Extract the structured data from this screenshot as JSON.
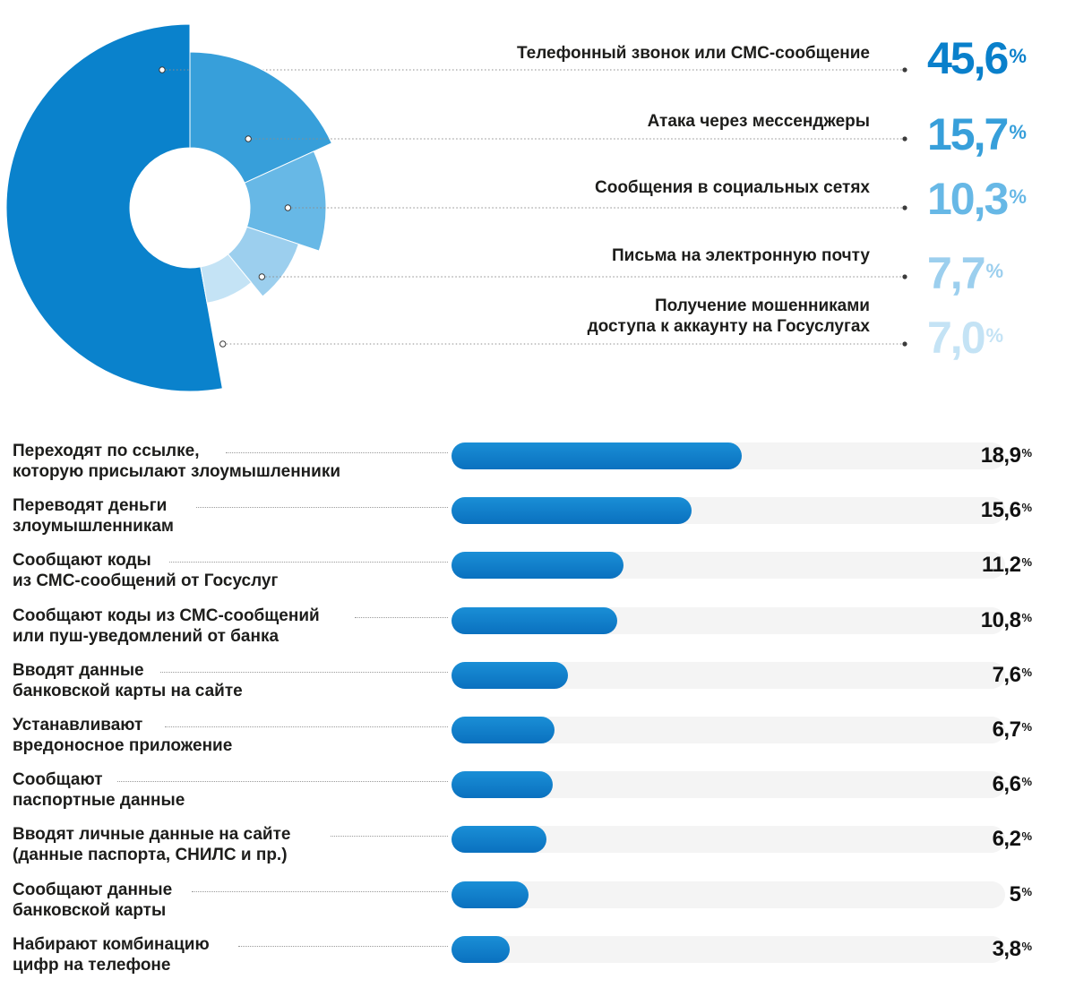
{
  "colors": {
    "slice1": "#0a82cc",
    "slice2": "#379fda",
    "slice3": "#67b8e6",
    "slice4": "#9ccfee",
    "slice5": "#c4e3f5",
    "bar_fill": "#0a7ac8",
    "bar_track": "#f4f4f4"
  },
  "chart_data": [
    {
      "type": "pie",
      "title": "",
      "categories": [
        "Телефонный звонок или СМС-сообщение",
        "Атака через мессенджеры",
        "Сообщения в социальных сетях",
        "Письма на электронную почту",
        "Получение мошенниками доступа к аккаунту на Госуслугах"
      ],
      "values": [
        45.6,
        15.7,
        10.3,
        7.7,
        7.0
      ],
      "value_labels": [
        "45,6",
        "15,7",
        "10,3",
        "7,7",
        "7,0"
      ],
      "unit": "%"
    },
    {
      "type": "bar",
      "orientation": "horizontal",
      "title": "",
      "categories": [
        [
          "Переходят по ссылке,",
          "которую присылают злоумышленники"
        ],
        [
          "Переводят деньги",
          "злоумышленникам"
        ],
        [
          "Сообщают коды",
          "из СМС-сообщений от Госуслуг"
        ],
        [
          "Сообщают коды из СМС-сообщений",
          "или пуш-уведомлений от банка"
        ],
        [
          "Вводят данные",
          "банковской карты на сайте"
        ],
        [
          "Устанавливают",
          "вредоносное приложение"
        ],
        [
          "Сообщают",
          "паспортные данные"
        ],
        [
          "Вводят личные данные на сайте",
          "(данные паспорта, СНИЛС и пр.)"
        ],
        [
          "Сообщают данные",
          "банковской карты"
        ],
        [
          "Набирают комбинацию",
          "цифр на телефоне"
        ]
      ],
      "values": [
        18.9,
        15.6,
        11.2,
        10.8,
        7.6,
        6.7,
        6.6,
        6.2,
        5,
        3.8
      ],
      "value_labels": [
        "18,9",
        "15,6",
        "11,2",
        "10,8",
        "7,6",
        "6,7",
        "6,6",
        "6,2",
        "5",
        "3,8"
      ],
      "unit": "%",
      "xlim": [
        0,
        36
      ]
    }
  ]
}
